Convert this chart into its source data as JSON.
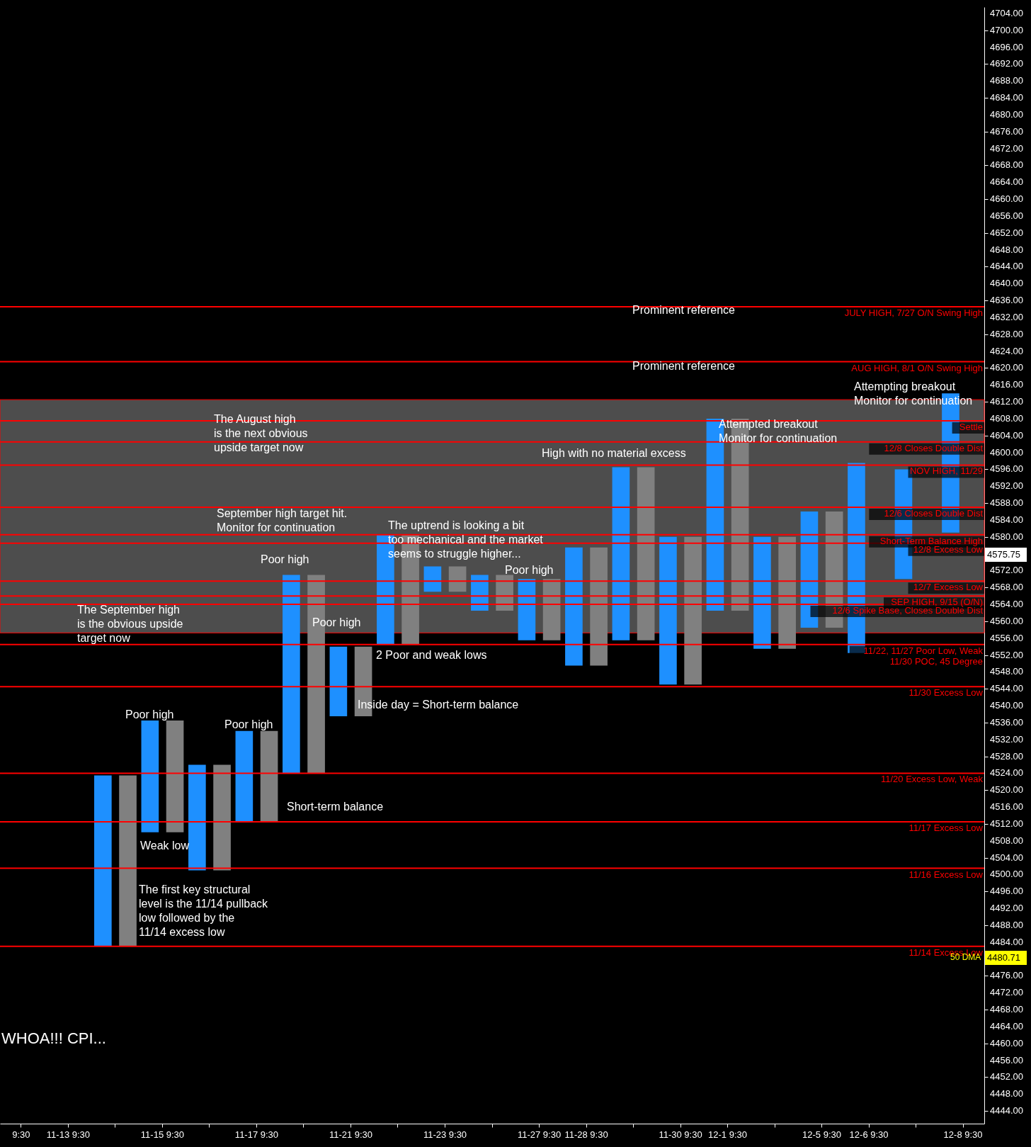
{
  "chart_data": {
    "type": "bar",
    "categories": [
      "9:30",
      "11-13 9:30",
      null,
      "11-15 9:30",
      null,
      "11-17 9:30",
      null,
      "11-21 9:30",
      null,
      "11-23 9:30",
      null,
      "11-27 9:30",
      "11-28 9:30",
      null,
      "11-30 9:30",
      "12-1 9:30",
      null,
      "12-5 9:30",
      "12-6 9:30",
      null,
      "12-8 9:30"
    ],
    "series": [
      {
        "color": "#1e90ff",
        "base": [
          null,
          null,
          4483,
          4510,
          4501,
          4512.5,
          4524,
          4537.5,
          4554.5,
          4567,
          4562.5,
          4555.5,
          4549.5,
          4555.5,
          4545,
          4562.5,
          4553.5,
          4558.5,
          4552.5,
          4570,
          4581
        ],
        "values": [
          null,
          null,
          40.5,
          26.5,
          25,
          21.5,
          47,
          16.5,
          26,
          6,
          8.5,
          14.5,
          28,
          41,
          35,
          45.5,
          26.5,
          27.5,
          45,
          26,
          33
        ]
      },
      {
        "color": "#808080",
        "base": [
          null,
          null,
          4483,
          4510,
          4501,
          4512.5,
          4524,
          4537.5,
          4554.5,
          4567,
          4562.5,
          4555.5,
          4549.5,
          4555.5,
          4545,
          4562.5,
          4553.5,
          4558.5,
          null,
          null,
          null
        ],
        "values": [
          null,
          null,
          40.5,
          26.5,
          25,
          21.5,
          47,
          16.5,
          26,
          6,
          8.5,
          14.5,
          28,
          41,
          35,
          45.5,
          26.5,
          27.5,
          null,
          null,
          null
        ]
      }
    ],
    "ylim": [
      4441,
      4705.5
    ],
    "yticks": [
      {
        "value": 4444,
        "label": "4444.00"
      },
      {
        "value": 4448,
        "label": "4448.00"
      },
      {
        "value": 4452,
        "label": "4452.00"
      },
      {
        "value": 4456,
        "label": "4456.00"
      },
      {
        "value": 4460,
        "label": "4460.00"
      },
      {
        "value": 4464,
        "label": "4464.00"
      },
      {
        "value": 4468,
        "label": "4468.00"
      },
      {
        "value": 4472,
        "label": "4472.00"
      },
      {
        "value": 4476,
        "label": "4476.00"
      },
      {
        "value": 4484,
        "label": "4484.00"
      },
      {
        "value": 4488,
        "label": "4488.00"
      },
      {
        "value": 4492,
        "label": "4492.00"
      },
      {
        "value": 4496,
        "label": "4496.00"
      },
      {
        "value": 4500,
        "label": "4500.00"
      },
      {
        "value": 4504,
        "label": "4504.00"
      },
      {
        "value": 4508,
        "label": "4508.00"
      },
      {
        "value": 4512,
        "label": "4512.00"
      },
      {
        "value": 4516,
        "label": "4516.00"
      },
      {
        "value": 4520,
        "label": "4520.00"
      },
      {
        "value": 4524,
        "label": "4524.00"
      },
      {
        "value": 4528,
        "label": "4528.00"
      },
      {
        "value": 4532,
        "label": "4532.00"
      },
      {
        "value": 4536,
        "label": "4536.00"
      },
      {
        "value": 4540,
        "label": "4540.00"
      },
      {
        "value": 4544,
        "label": "4544.00"
      },
      {
        "value": 4548,
        "label": "4548.00"
      },
      {
        "value": 4552,
        "label": "4552.00"
      },
      {
        "value": 4556,
        "label": "4556.00"
      },
      {
        "value": 4560,
        "label": "4560.00"
      },
      {
        "value": 4564,
        "label": "4564.00"
      },
      {
        "value": 4568,
        "label": "4568.00"
      },
      {
        "value": 4572,
        "label": "4572.00"
      },
      {
        "value": 4580,
        "label": "4580.00"
      },
      {
        "value": 4584,
        "label": "4584.00"
      },
      {
        "value": 4588,
        "label": "4588.00"
      },
      {
        "value": 4592,
        "label": "4592.00"
      },
      {
        "value": 4596,
        "label": "4596.00"
      },
      {
        "value": 4600,
        "label": "4600.00"
      },
      {
        "value": 4604,
        "label": "4604.00"
      },
      {
        "value": 4608,
        "label": "4608.00"
      },
      {
        "value": 4612,
        "label": "4612.00"
      },
      {
        "value": 4616,
        "label": "4616.00"
      },
      {
        "value": 4620,
        "label": "4620.00"
      },
      {
        "value": 4624,
        "label": "4624.00"
      },
      {
        "value": 4628,
        "label": "4628.00"
      },
      {
        "value": 4632,
        "label": "4632.00"
      },
      {
        "value": 4636,
        "label": "4636.00"
      },
      {
        "value": 4640,
        "label": "4640.00"
      },
      {
        "value": 4644,
        "label": "4644.00"
      },
      {
        "value": 4648,
        "label": "4648.00"
      },
      {
        "value": 4652,
        "label": "4652.00"
      },
      {
        "value": 4656,
        "label": "4656.00"
      },
      {
        "value": 4660,
        "label": "4660.00"
      },
      {
        "value": 4664,
        "label": "4664.00"
      },
      {
        "value": 4668,
        "label": "4668.00"
      },
      {
        "value": 4672,
        "label": "4672.00"
      },
      {
        "value": 4676,
        "label": "4676.00"
      },
      {
        "value": 4680,
        "label": "4680.00"
      },
      {
        "value": 4684,
        "label": "4684.00"
      },
      {
        "value": 4688,
        "label": "4688.00"
      },
      {
        "value": 4692,
        "label": "4692.00"
      },
      {
        "value": 4696,
        "label": "4696.00"
      },
      {
        "value": 4700,
        "label": "4700.00"
      },
      {
        "value": 4704,
        "label": "4704.00"
      }
    ],
    "bands": [
      {
        "axis": "y",
        "from": 4557.25,
        "to": 4612.5,
        "color": "#4d4d4d"
      }
    ],
    "ref_lines": [
      {
        "axis": "y",
        "value": 4634.5,
        "label": "JULY HIGH, 7/27 O/N Swing High",
        "color": "#ff0000"
      },
      {
        "axis": "y",
        "value": 4621.5,
        "label": "AUG HIGH, 8/1 O/N Swing High",
        "color": "#ff0000"
      },
      {
        "axis": "y",
        "value": 4607.5,
        "label": "Settle",
        "color": "#ff0000"
      },
      {
        "axis": "y",
        "value": 4602.5,
        "label": "12/8 Closes Double Dist",
        "color": "#ff0000"
      },
      {
        "axis": "y",
        "value": 4597,
        "label": "NOV HIGH, 11/29",
        "color": "#ff0000"
      },
      {
        "axis": "y",
        "value": 4587,
        "label": "12/6 Closes Double Dist",
        "color": "#ff0000"
      },
      {
        "axis": "y",
        "value": 4580.5,
        "label": "Short-Term Balance High",
        "color": "#ff0000"
      },
      {
        "axis": "y",
        "value": 4578.5,
        "label": "12/8 Excess Low",
        "color": "#ff0000"
      },
      {
        "axis": "y",
        "value": 4569.5,
        "label": "12/7 Excess Low",
        "color": "#ff0000"
      },
      {
        "axis": "y",
        "value": 4566,
        "label": "SEP HIGH, 9/15 (O/N)",
        "color": "#ff0000"
      },
      {
        "axis": "y",
        "value": 4564,
        "label": "12/6 Spike Base, Closes Double Dist",
        "color": "#ff0000"
      },
      {
        "axis": "y",
        "value": 4554.5,
        "label": "11/22, 11/27 Poor Low, Weak\n11/30 POC, 45 Degree",
        "color": "#ff0000"
      },
      {
        "axis": "y",
        "value": 4544.5,
        "label": "11/30 Excess Low",
        "color": "#ff0000"
      },
      {
        "axis": "y",
        "value": 4524,
        "label": "11/20 Excess Low, Weak",
        "color": "#ff0000"
      },
      {
        "axis": "y",
        "value": 4512.5,
        "label": "11/17 Excess Low",
        "color": "#ff0000"
      },
      {
        "axis": "y",
        "value": 4501.5,
        "label": "11/16 Excess Low",
        "color": "#ff0000"
      },
      {
        "axis": "y",
        "value": 4483,
        "label": "11/14 Excess Low",
        "color": "#ff0000"
      }
    ],
    "annotations": [
      "Prominent reference",
      "Prominent reference",
      "Attempting breakout\nMonitor for continuation",
      "The August high\nis the next obvious\nupside target now",
      "Attempted breakout\nMonitor for continuation",
      "High with no material excess",
      "September high target hit.\nMonitor for continuation",
      "The uptrend is looking a bit\ntoo mechanical and the market\nseems to struggle higher...",
      "Poor high",
      "Poor high",
      "The September high\nis the obvious upside\ntarget now",
      "Poor high",
      "2 Poor and weak lows",
      "Inside day = Short-term balance",
      "Poor high",
      "Poor high",
      "Short-term balance",
      "Weak low",
      "The first key structural\nlevel is the 11/14 pullback\nlow followed by the\n11/14 excess low",
      "WHOA!!! CPI...",
      "50 DMA",
      "4575.75",
      "4480.71"
    ]
  }
}
